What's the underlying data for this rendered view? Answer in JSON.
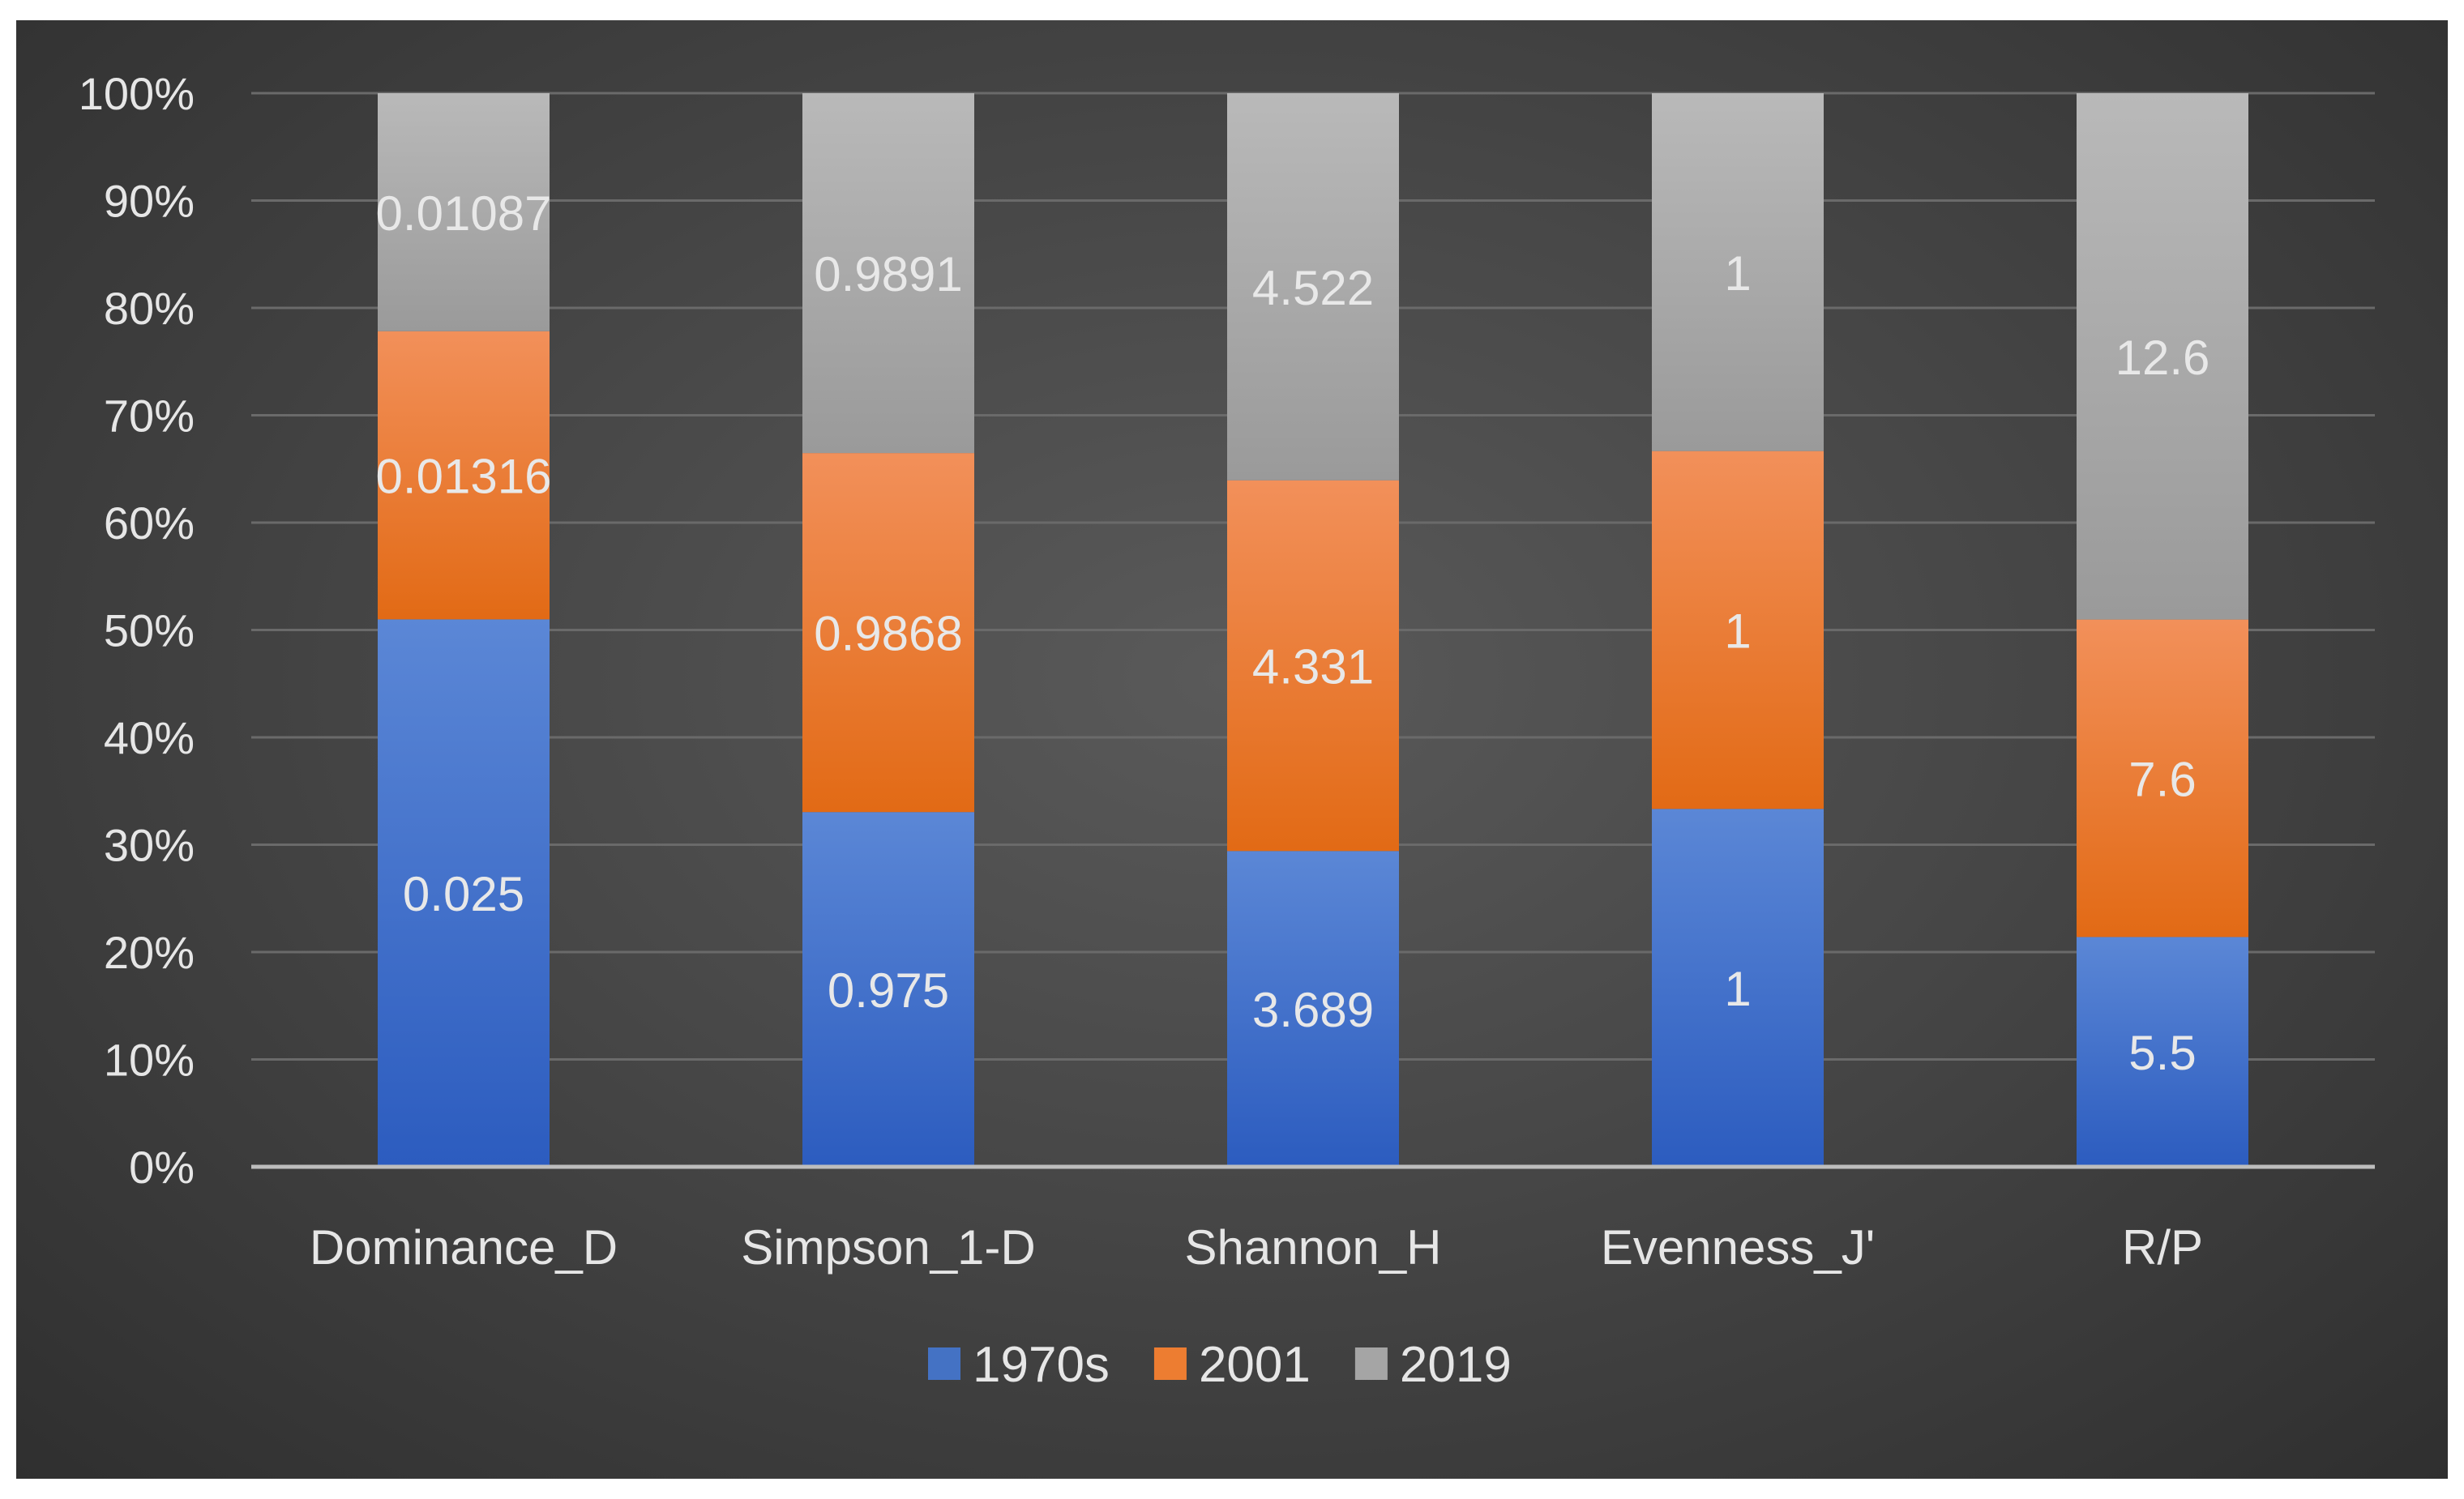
{
  "chart_data": {
    "type": "bar",
    "stacking": "percent",
    "categories": [
      "Dominance_D",
      "Simpson_1-D",
      "Shannon_H",
      "Evenness_J'",
      "R/P"
    ],
    "series": [
      {
        "name": "1970s",
        "values": [
          0.025,
          0.975,
          3.689,
          1,
          5.5
        ],
        "labels": [
          "0.025",
          "0.975",
          "3.689",
          "1",
          "5.5"
        ],
        "color": "#4472c4"
      },
      {
        "name": "2001",
        "values": [
          0.01316,
          0.9868,
          4.331,
          1,
          7.6
        ],
        "labels": [
          "0.01316",
          "0.9868",
          "4.331",
          "1",
          "7.6"
        ],
        "color": "#ed7d31"
      },
      {
        "name": "2019",
        "values": [
          0.01087,
          0.9891,
          4.522,
          1,
          12.6
        ],
        "labels": [
          "0.01087",
          "0.9891",
          "4.522",
          "1",
          "12.6"
        ],
        "color": "#a5a5a5"
      }
    ],
    "yticks": [
      "0%",
      "10%",
      "20%",
      "30%",
      "40%",
      "50%",
      "60%",
      "70%",
      "80%",
      "90%",
      "100%"
    ],
    "ylim": [
      0,
      100
    ],
    "grid": true,
    "legend_position": "bottom"
  }
}
